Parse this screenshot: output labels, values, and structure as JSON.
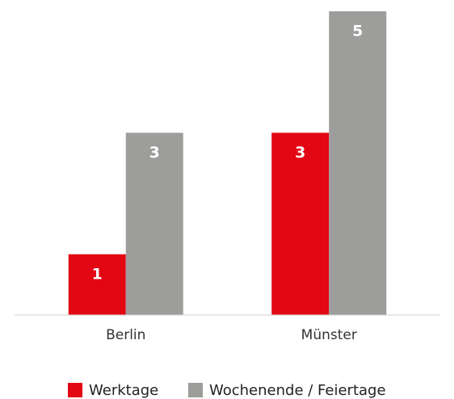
{
  "chart_data": {
    "type": "bar",
    "categories": [
      "Berlin",
      "Münster"
    ],
    "series": [
      {
        "name": "Werktage",
        "color": "#e30613",
        "values": [
          1,
          3
        ]
      },
      {
        "name": "Wochenende / Feiertage",
        "color": "#9d9d9c",
        "values": [
          3,
          5
        ]
      }
    ],
    "ylim": [
      0,
      5
    ]
  }
}
